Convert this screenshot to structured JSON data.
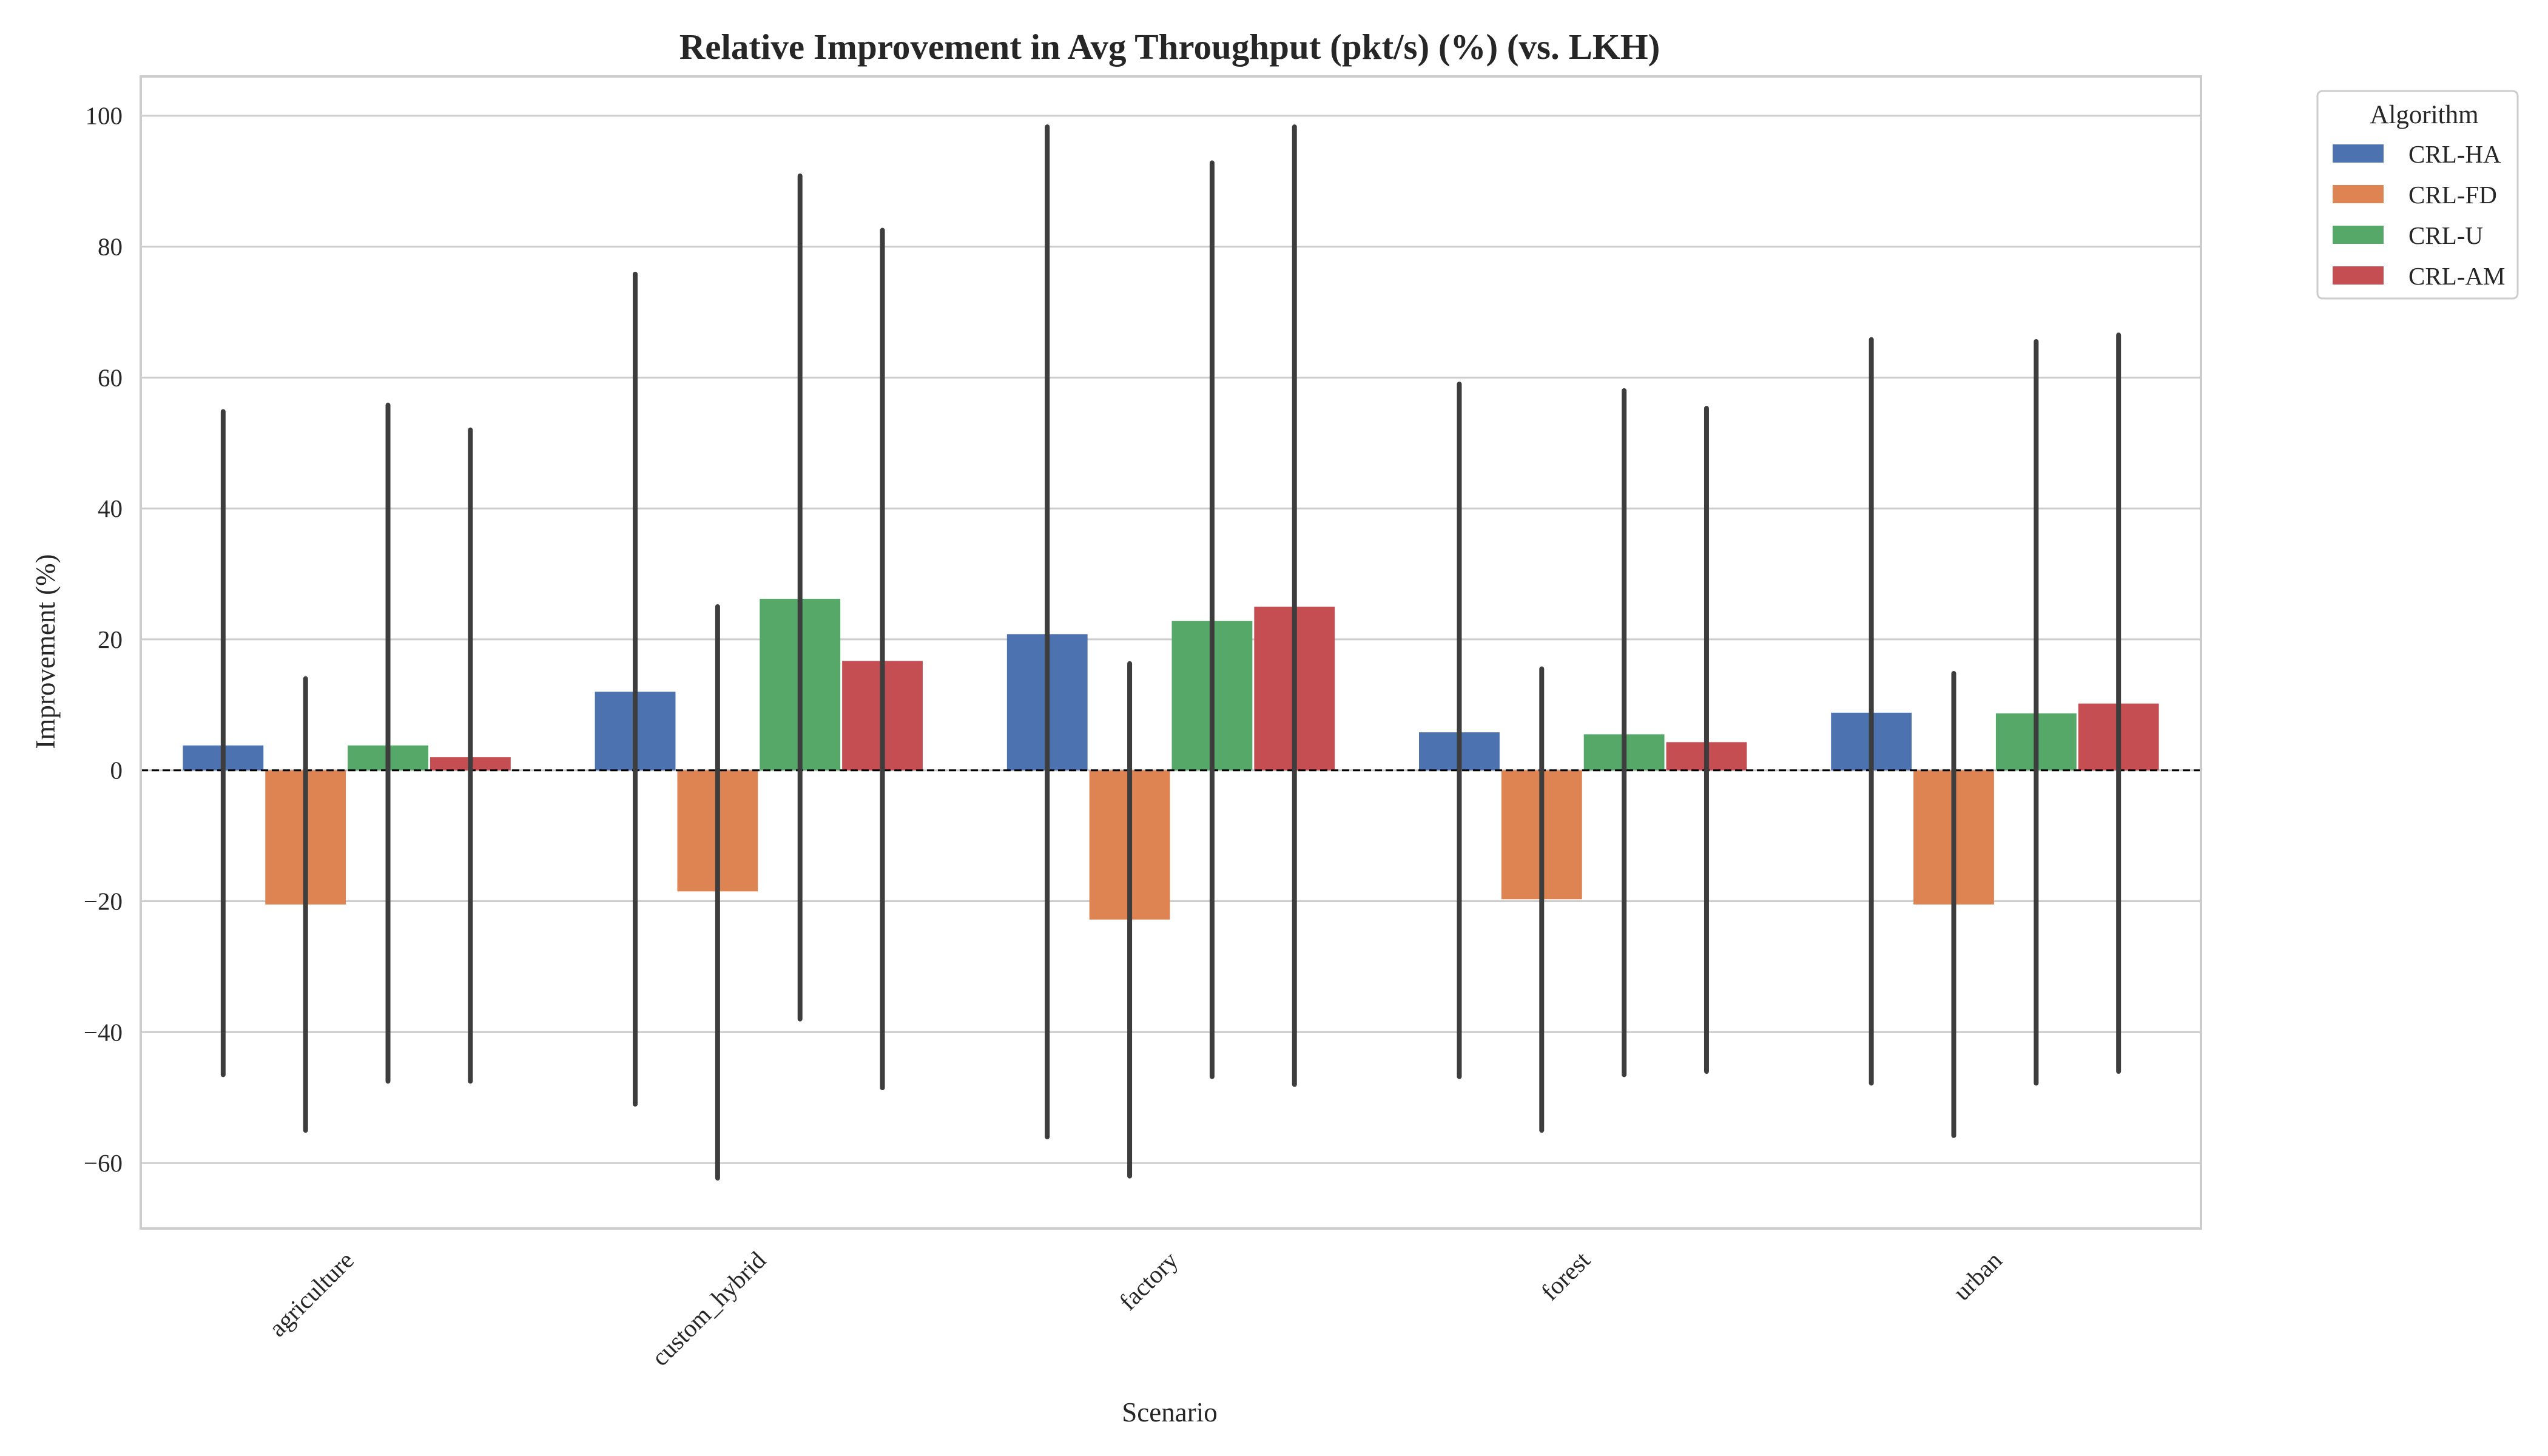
{
  "chart_data": {
    "type": "bar",
    "title": "Relative Improvement in Avg Throughput (pkt/s) (%) (vs. LKH)",
    "xlabel": "Scenario",
    "ylabel": "Improvement (%)",
    "categories": [
      "agriculture",
      "custom_hybrid",
      "factory",
      "forest",
      "urban"
    ],
    "ylim": [
      -70,
      106
    ],
    "yticks": [
      -60,
      -40,
      -20,
      0,
      20,
      40,
      60,
      80,
      100
    ],
    "grid": true,
    "reference_line": 0,
    "legend": {
      "title": "Algorithm",
      "placement": "outside-top-right"
    },
    "series": [
      {
        "name": "CRL-HA",
        "color": "#4c72b0",
        "values": [
          3.8,
          12.0,
          20.8,
          5.8,
          8.8
        ],
        "err_low": [
          -46.5,
          -51.0,
          -56.0,
          -46.8,
          -47.8
        ],
        "err_high": [
          54.8,
          75.8,
          98.3,
          59.0,
          65.8
        ]
      },
      {
        "name": "CRL-FD",
        "color": "#dd8452",
        "values": [
          -20.5,
          -18.5,
          -22.8,
          -19.7,
          -20.5
        ],
        "err_low": [
          -55.0,
          -62.3,
          -62.0,
          -55.0,
          -55.8
        ],
        "err_high": [
          14.0,
          25.0,
          16.3,
          15.5,
          14.8
        ]
      },
      {
        "name": "CRL-U",
        "color": "#55a868",
        "values": [
          3.8,
          26.2,
          22.8,
          5.5,
          8.7
        ],
        "err_low": [
          -47.5,
          -38.0,
          -46.8,
          -46.5,
          -47.8
        ],
        "err_high": [
          55.8,
          90.8,
          92.8,
          58.0,
          65.5
        ]
      },
      {
        "name": "CRL-AM",
        "color": "#c44e52",
        "values": [
          2.0,
          16.7,
          25.0,
          4.3,
          10.2
        ],
        "err_low": [
          -47.5,
          -48.5,
          -48.0,
          -46.0,
          -46.0
        ],
        "err_high": [
          52.0,
          82.5,
          98.3,
          55.3,
          66.5
        ]
      }
    ]
  }
}
